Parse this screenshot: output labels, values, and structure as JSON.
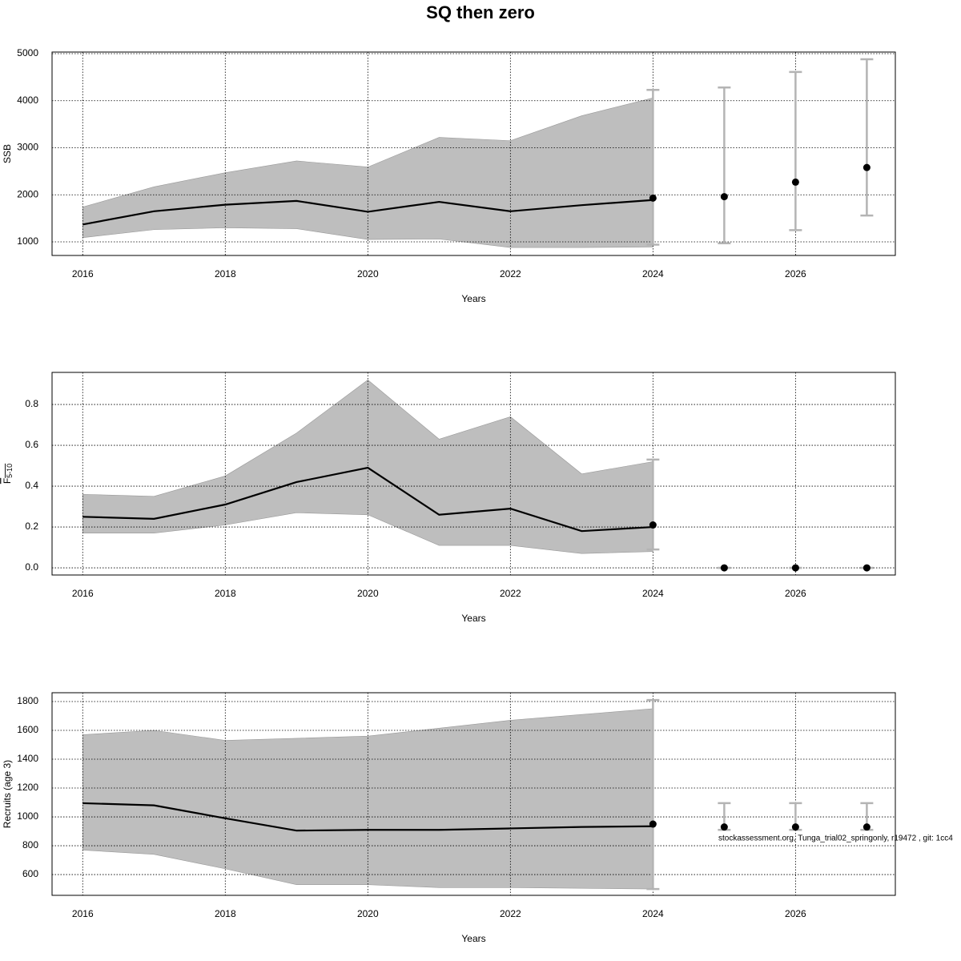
{
  "title": "SQ then zero",
  "annotation": "stockassessment.org, Tunga_trial02_springonly, r19472 , git: 1cc4",
  "chart_data": [
    {
      "type": "line",
      "ylabel": "SSB",
      "xlabel": "Years",
      "grid": true,
      "line_color": "#000000",
      "band_color": "#bebebe",
      "errorbar_color": "#b4b4b4",
      "xlim": [
        2015.57,
        2027.4
      ],
      "xticks": [
        2016,
        2018,
        2020,
        2022,
        2024,
        2026
      ],
      "ylim": [
        711,
        5034
      ],
      "yticks": [
        1000,
        2000,
        3000,
        4000,
        5000
      ],
      "x": [
        2016,
        2017,
        2018,
        2019,
        2020,
        2021,
        2022,
        2023,
        2024
      ],
      "values": [
        1370,
        1650,
        1790,
        1870,
        1640,
        1850,
        1650,
        1780,
        1890
      ],
      "upper": [
        1740,
        2170,
        2470,
        2720,
        2590,
        3220,
        3150,
        3680,
        4060
      ],
      "lower": [
        1090,
        1260,
        1300,
        1280,
        1050,
        1060,
        880,
        880,
        890
      ],
      "forecast": {
        "x": [
          2024,
          2025,
          2026,
          2027
        ],
        "values": [
          1930,
          1960,
          2270,
          2580
        ],
        "low": [
          940,
          970,
          1250,
          1560
        ],
        "high": [
          4230,
          4280,
          4610,
          4880
        ]
      }
    },
    {
      "type": "line",
      "ylabel": "F",
      "ylabel_subscript": "5-10",
      "xlabel": "Years",
      "grid": true,
      "line_color": "#000000",
      "band_color": "#bebebe",
      "errorbar_color": "#b4b4b4",
      "xlim": [
        2015.57,
        2027.4
      ],
      "xticks": [
        2016,
        2018,
        2020,
        2022,
        2024,
        2026
      ],
      "ylim": [
        -0.035,
        0.957
      ],
      "yticks": [
        {
          "value": 0,
          "label": "0.0"
        },
        0.2,
        0.4,
        0.6,
        0.8
      ],
      "x": [
        2016,
        2017,
        2018,
        2019,
        2020,
        2021,
        2022,
        2023,
        2024
      ],
      "values": [
        0.25,
        0.24,
        0.31,
        0.42,
        0.49,
        0.26,
        0.29,
        0.18,
        0.2
      ],
      "upper": [
        0.36,
        0.35,
        0.45,
        0.66,
        0.92,
        0.63,
        0.74,
        0.46,
        0.52
      ],
      "lower": [
        0.17,
        0.17,
        0.21,
        0.27,
        0.26,
        0.11,
        0.11,
        0.07,
        0.08
      ],
      "forecast": {
        "x": [
          2024,
          2025,
          2026,
          2027
        ],
        "values": [
          0.21,
          0,
          0,
          0
        ],
        "low": [
          0.09,
          0,
          0,
          0
        ],
        "high": [
          0.53,
          0,
          0,
          0
        ]
      }
    },
    {
      "type": "line",
      "ylabel": "Recruits (age 3)",
      "xlabel": "Years",
      "grid": true,
      "line_color": "#000000",
      "band_color": "#bebebe",
      "errorbar_color": "#b4b4b4",
      "xlim": [
        2015.57,
        2027.4
      ],
      "xticks": [
        2016,
        2018,
        2020,
        2022,
        2024,
        2026
      ],
      "ylim": [
        456,
        1861
      ],
      "yticks": [
        600,
        800,
        1000,
        1200,
        1400,
        1600,
        1800
      ],
      "x": [
        2016,
        2017,
        2018,
        2019,
        2020,
        2021,
        2022,
        2023,
        2024
      ],
      "values": [
        1095,
        1080,
        990,
        905,
        910,
        910,
        920,
        930,
        935
      ],
      "upper": [
        1570,
        1600,
        1530,
        1545,
        1560,
        1615,
        1670,
        1710,
        1750
      ],
      "lower": [
        770,
        740,
        640,
        530,
        530,
        510,
        510,
        505,
        500
      ],
      "forecast": {
        "x": [
          2024,
          2025,
          2026,
          2027
        ],
        "values": [
          950,
          930,
          930,
          930
        ],
        "low": [
          500,
          910,
          910,
          910
        ],
        "high": [
          1810,
          1095,
          1095,
          1095
        ]
      }
    }
  ]
}
